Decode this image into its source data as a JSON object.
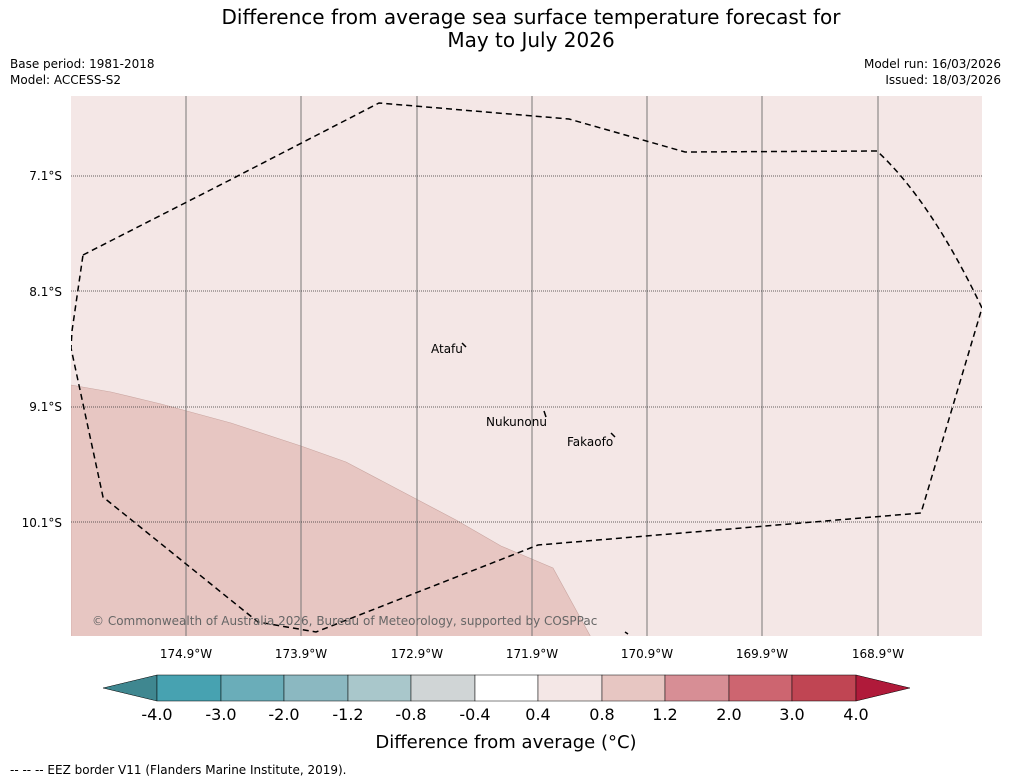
{
  "header": {
    "title_line1": "Difference from average sea surface temperature forecast for",
    "title_line2": "May to July 2026",
    "base_period": "Base period: 1981-2018",
    "model": "Model: ACCESS-S2",
    "model_run": "Model run: 16/03/2026",
    "issued": "Issued: 18/03/2026"
  },
  "map": {
    "background_color": "#f4e7e6",
    "warm_region_color": "#e7c6c2",
    "latitudes": [
      "7.1°S",
      "8.1°S",
      "9.1°S",
      "10.1°S"
    ],
    "longitudes": [
      "174.9°W",
      "173.9°W",
      "172.9°W",
      "171.9°W",
      "170.9°W",
      "169.9°W",
      "168.9°W"
    ],
    "places": [
      {
        "name": "Atafu"
      },
      {
        "name": "Nukunonu"
      },
      {
        "name": "Fakaofo"
      }
    ],
    "copyright": "© Commonwealth of Australia 2026, Bureau of Meteorology, supported by COSPPac"
  },
  "colorbar": {
    "ticks": [
      "-4.0",
      "-3.0",
      "-2.0",
      "-1.2",
      "-0.8",
      "-0.4",
      "0.4",
      "0.8",
      "1.2",
      "2.0",
      "3.0",
      "4.0"
    ],
    "colors": [
      "#3f8790",
      "#47a2b1",
      "#6aadb9",
      "#8bb8c1",
      "#a9c7cb",
      "#d0d5d6",
      "#ffffff",
      "#f4e7e6",
      "#e7c6c2",
      "#d78e95",
      "#cd6570",
      "#c04553",
      "#b01a3a"
    ],
    "title": "Difference from average (°C)"
  },
  "footnote": "--  --  -- EEZ border V11 (Flanders Marine Institute, 2019)."
}
